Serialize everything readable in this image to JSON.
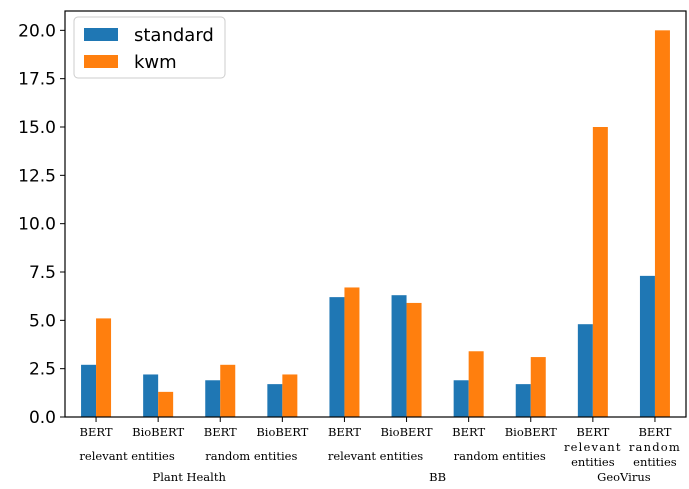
{
  "chart_data": {
    "type": "bar",
    "categories": [
      "BERT",
      "BioBERT",
      "BERT",
      "BioBERT",
      "BERT",
      "BioBERT",
      "BERT",
      "BioBERT",
      "BERT",
      "BERT"
    ],
    "category_sublabels": [
      "relevant entities",
      "random entities",
      "relevant entities",
      "random entities",
      "relevant entities",
      "random entities"
    ],
    "category_groups": [
      "Plant Health",
      "BB",
      "GeoVirus"
    ],
    "series": [
      {
        "name": "standard",
        "color": "#1f77b4",
        "values": [
          2.7,
          2.2,
          1.9,
          1.7,
          6.2,
          6.3,
          1.9,
          1.7,
          4.8,
          7.3
        ]
      },
      {
        "name": "kwm",
        "color": "#ff7f0e",
        "values": [
          5.1,
          1.3,
          2.7,
          2.2,
          6.7,
          5.9,
          3.4,
          3.1,
          15.0,
          20.0
        ]
      }
    ],
    "yticks": [
      "0.0",
      "2.5",
      "5.0",
      "7.5",
      "10.0",
      "12.5",
      "15.0",
      "17.5",
      "20.0"
    ],
    "ylim": [
      0,
      21
    ],
    "legend_position": "top-left",
    "grid": false
  }
}
